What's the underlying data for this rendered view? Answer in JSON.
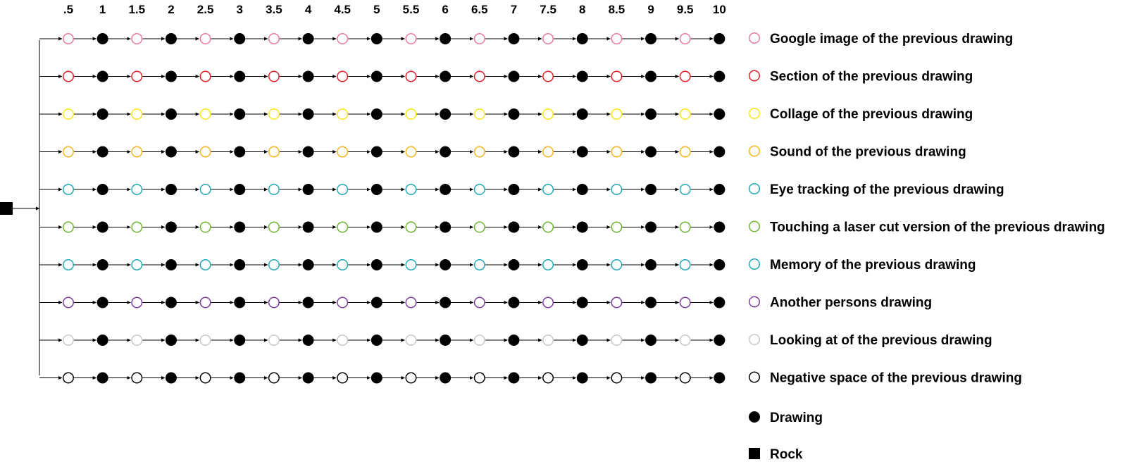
{
  "columns": [
    ".5",
    "1",
    "1.5",
    "2",
    "2.5",
    "3",
    "3.5",
    "4",
    "4.5",
    "5",
    "5.5",
    "6",
    "6.5",
    "7",
    "7.5",
    "8",
    "8.5",
    "9",
    "9.5",
    "10"
  ],
  "rows": [
    {
      "label": "Google image of the previous drawing",
      "color": "#e8799b"
    },
    {
      "label": "Section of the previous drawing",
      "color": "#e01b24"
    },
    {
      "label": "Collage of the previous drawing",
      "color": "#f6e61a"
    },
    {
      "label": "Sound of the previous drawing",
      "color": "#f5b31a"
    },
    {
      "label": "Eye tracking of the previous drawing",
      "color": "#1fa9b8"
    },
    {
      "label": "Touching a laser cut version of the previous drawing",
      "color": "#6eb52f"
    },
    {
      "label": "Memory of the previous drawing",
      "color": "#1fa9b8"
    },
    {
      "label": "Another persons drawing",
      "color": "#7a3a9a"
    },
    {
      "label": "Looking at of the previous drawing",
      "color": "#c8c8c8"
    },
    {
      "label": "Negative space of the previous drawing",
      "color": "#000000"
    }
  ],
  "legend_extra": {
    "drawing": {
      "label": "Drawing",
      "icon": "filled-circle-icon",
      "color": "#000000"
    },
    "rock": {
      "label": "Rock",
      "icon": "filled-square-icon",
      "color": "#000000"
    }
  }
}
